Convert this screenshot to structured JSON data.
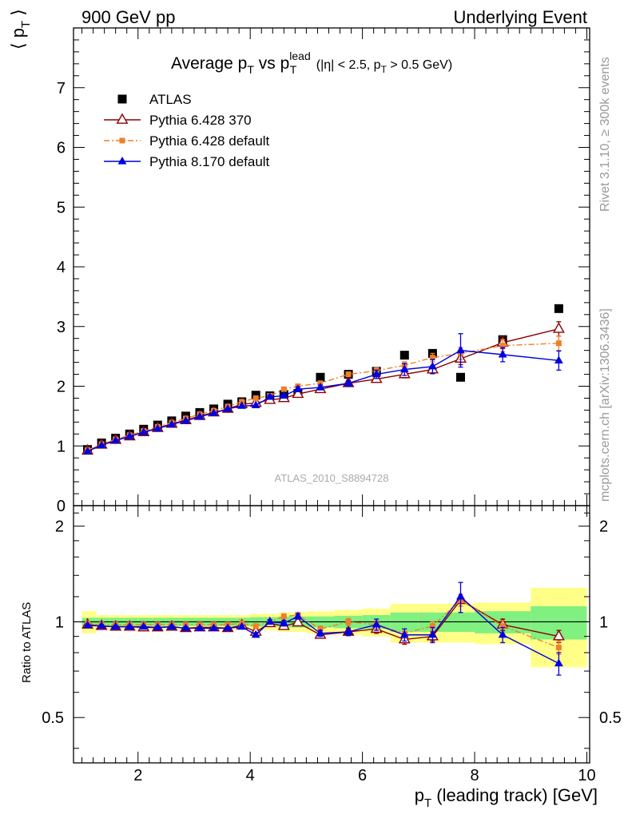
{
  "header": {
    "left": "900 GeV pp",
    "right": "Underlying Event"
  },
  "side_labels": {
    "rivet": "Rivet 3.1.10, ≥ 300k events",
    "mcplots": "mcplots.cern.ch [arXiv:1306.3436]"
  },
  "analysis_tag": "ATLAS_2010_S8894728",
  "chart_data": [
    {
      "type": "scatter",
      "title": "Average p_T vs p_T^lead (|η| < 2.5, p_T > 0.5 GeV)",
      "xlabel": "p_T (leading track) [GeV]",
      "ylabel": "⟨ p_T ⟩",
      "xlim": [
        0.85,
        10.05
      ],
      "ylim": [
        0,
        8
      ],
      "yticks": [
        0,
        1,
        2,
        3,
        4,
        5,
        6,
        7
      ],
      "xticks": [
        2,
        4,
        6,
        8,
        10
      ],
      "legend_position": "top-left",
      "x": [
        1.1,
        1.35,
        1.6,
        1.85,
        2.1,
        2.35,
        2.6,
        2.85,
        3.1,
        3.35,
        3.6,
        3.85,
        4.1,
        4.35,
        4.6,
        4.85,
        5.25,
        5.75,
        6.25,
        6.75,
        7.25,
        7.75,
        8.5,
        9.5
      ],
      "series": [
        {
          "name": "ATLAS",
          "color": "#000000",
          "marker": "square",
          "values": [
            0.94,
            1.05,
            1.13,
            1.2,
            1.28,
            1.35,
            1.42,
            1.5,
            1.56,
            1.62,
            1.7,
            1.74,
            1.85,
            1.84,
            1.86,
            1.88,
            2.15,
            2.2,
            2.25,
            2.52,
            2.55,
            2.15,
            2.78,
            3.3
          ]
        },
        {
          "name": "Pythia 6.428 370",
          "color": "#8b0000",
          "marker": "open-triangle",
          "line": "solid",
          "values": [
            0.92,
            1.02,
            1.1,
            1.16,
            1.23,
            1.3,
            1.37,
            1.43,
            1.5,
            1.56,
            1.62,
            1.7,
            1.72,
            1.77,
            1.8,
            1.87,
            1.95,
            2.05,
            2.12,
            2.2,
            2.28,
            2.46,
            2.73,
            2.96
          ],
          "yerr": [
            0.01,
            0.01,
            0.01,
            0.01,
            0.01,
            0.01,
            0.01,
            0.01,
            0.01,
            0.01,
            0.01,
            0.01,
            0.02,
            0.02,
            0.03,
            0.03,
            0.03,
            0.04,
            0.05,
            0.06,
            0.07,
            0.1,
            0.1,
            0.12
          ]
        },
        {
          "name": "Pythia 6.428 default",
          "color": "#f07f2a",
          "marker": "small-square",
          "line": "dash-dot",
          "values": [
            0.93,
            1.03,
            1.11,
            1.18,
            1.25,
            1.32,
            1.39,
            1.46,
            1.53,
            1.59,
            1.66,
            1.74,
            1.8,
            1.84,
            1.95,
            2.0,
            2.05,
            2.2,
            2.26,
            2.35,
            2.48,
            2.55,
            2.68,
            2.72
          ],
          "yerr": [
            0.01,
            0.01,
            0.01,
            0.01,
            0.01,
            0.01,
            0.01,
            0.01,
            0.01,
            0.01,
            0.01,
            0.01,
            0.02,
            0.02,
            0.03,
            0.03,
            0.03,
            0.04,
            0.05,
            0.06,
            0.07,
            0.1,
            0.1,
            0.12
          ]
        },
        {
          "name": "Pythia 8.170 default",
          "color": "#0000e0",
          "marker": "triangle",
          "line": "solid",
          "values": [
            0.91,
            1.01,
            1.09,
            1.16,
            1.23,
            1.29,
            1.36,
            1.42,
            1.49,
            1.55,
            1.62,
            1.67,
            1.68,
            1.82,
            1.84,
            1.95,
            1.98,
            2.05,
            2.2,
            2.28,
            2.33,
            2.6,
            2.53,
            2.43
          ],
          "yerr": [
            0.01,
            0.01,
            0.01,
            0.01,
            0.01,
            0.01,
            0.01,
            0.01,
            0.01,
            0.01,
            0.01,
            0.01,
            0.02,
            0.03,
            0.03,
            0.04,
            0.04,
            0.05,
            0.07,
            0.1,
            0.12,
            0.28,
            0.12,
            0.16
          ]
        }
      ]
    },
    {
      "type": "scatter",
      "ylabel": "Ratio to ATLAS",
      "xlabel": "p_T (leading track) [GeV]",
      "xlim": [
        0.85,
        10.05
      ],
      "ylim": [
        0.36,
        2.32
      ],
      "yscale": "log",
      "yticks": [
        0.5,
        1,
        2
      ],
      "xticks": [
        2,
        4,
        6,
        8,
        10
      ],
      "reference_line": 1,
      "bands": {
        "bin_edges": [
          1.0,
          1.25,
          1.5,
          1.75,
          2.0,
          2.25,
          2.5,
          2.75,
          3.0,
          3.25,
          3.5,
          3.75,
          4.0,
          4.25,
          4.5,
          4.75,
          5.0,
          5.5,
          6.0,
          6.5,
          7.0,
          7.5,
          8.0,
          9.0,
          10.0
        ],
        "inner_color": "#80f080",
        "outer_color": "#ffff88",
        "inner_halfwidth": [
          0.03,
          0.03,
          0.03,
          0.03,
          0.03,
          0.03,
          0.03,
          0.03,
          0.03,
          0.03,
          0.03,
          0.03,
          0.035,
          0.035,
          0.04,
          0.04,
          0.04,
          0.045,
          0.05,
          0.07,
          0.07,
          0.07,
          0.08,
          0.12
        ],
        "outer_halfwidth": [
          0.08,
          0.05,
          0.05,
          0.05,
          0.05,
          0.05,
          0.05,
          0.05,
          0.05,
          0.05,
          0.05,
          0.05,
          0.06,
          0.06,
          0.07,
          0.07,
          0.08,
          0.09,
          0.1,
          0.14,
          0.14,
          0.14,
          0.15,
          0.28
        ]
      },
      "series": [
        {
          "name": "Pythia 6.428 370",
          "color": "#8b0000",
          "marker": "open-triangle",
          "line": "solid",
          "values": [
            0.98,
            0.97,
            0.965,
            0.965,
            0.96,
            0.96,
            0.965,
            0.955,
            0.96,
            0.96,
            0.955,
            0.975,
            0.93,
            0.99,
            0.97,
            0.995,
            0.91,
            0.93,
            0.95,
            0.88,
            0.9,
            1.17,
            0.98,
            0.9
          ],
          "yerr": [
            0.01,
            0.01,
            0.01,
            0.01,
            0.01,
            0.01,
            0.01,
            0.01,
            0.01,
            0.01,
            0.01,
            0.01,
            0.015,
            0.015,
            0.02,
            0.02,
            0.02,
            0.025,
            0.03,
            0.03,
            0.03,
            0.05,
            0.04,
            0.04
          ]
        },
        {
          "name": "Pythia 6.428 default",
          "color": "#f07f2a",
          "marker": "small-square",
          "line": "dash-dot",
          "values": [
            0.99,
            0.98,
            0.98,
            0.98,
            0.98,
            0.98,
            0.98,
            0.98,
            0.98,
            0.98,
            0.98,
            0.99,
            0.97,
            1.0,
            1.04,
            1.05,
            0.95,
            1.0,
            0.98,
            0.92,
            0.97,
            1.17,
            0.97,
            0.83
          ],
          "yerr": [
            0.01,
            0.01,
            0.01,
            0.01,
            0.01,
            0.01,
            0.01,
            0.01,
            0.01,
            0.01,
            0.01,
            0.01,
            0.015,
            0.015,
            0.02,
            0.02,
            0.02,
            0.025,
            0.03,
            0.03,
            0.03,
            0.05,
            0.04,
            0.04
          ]
        },
        {
          "name": "Pythia 8.170 default",
          "color": "#0000e0",
          "marker": "triangle",
          "line": "solid",
          "values": [
            0.975,
            0.97,
            0.965,
            0.965,
            0.965,
            0.96,
            0.965,
            0.955,
            0.955,
            0.955,
            0.955,
            0.965,
            0.91,
            1.0,
            0.99,
            1.04,
            0.92,
            0.93,
            0.98,
            0.91,
            0.91,
            1.2,
            0.91,
            0.74
          ],
          "yerr": [
            0.01,
            0.01,
            0.01,
            0.01,
            0.01,
            0.01,
            0.01,
            0.01,
            0.01,
            0.01,
            0.01,
            0.01,
            0.015,
            0.015,
            0.02,
            0.02,
            0.02,
            0.025,
            0.04,
            0.04,
            0.05,
            0.13,
            0.05,
            0.06
          ]
        }
      ]
    }
  ]
}
